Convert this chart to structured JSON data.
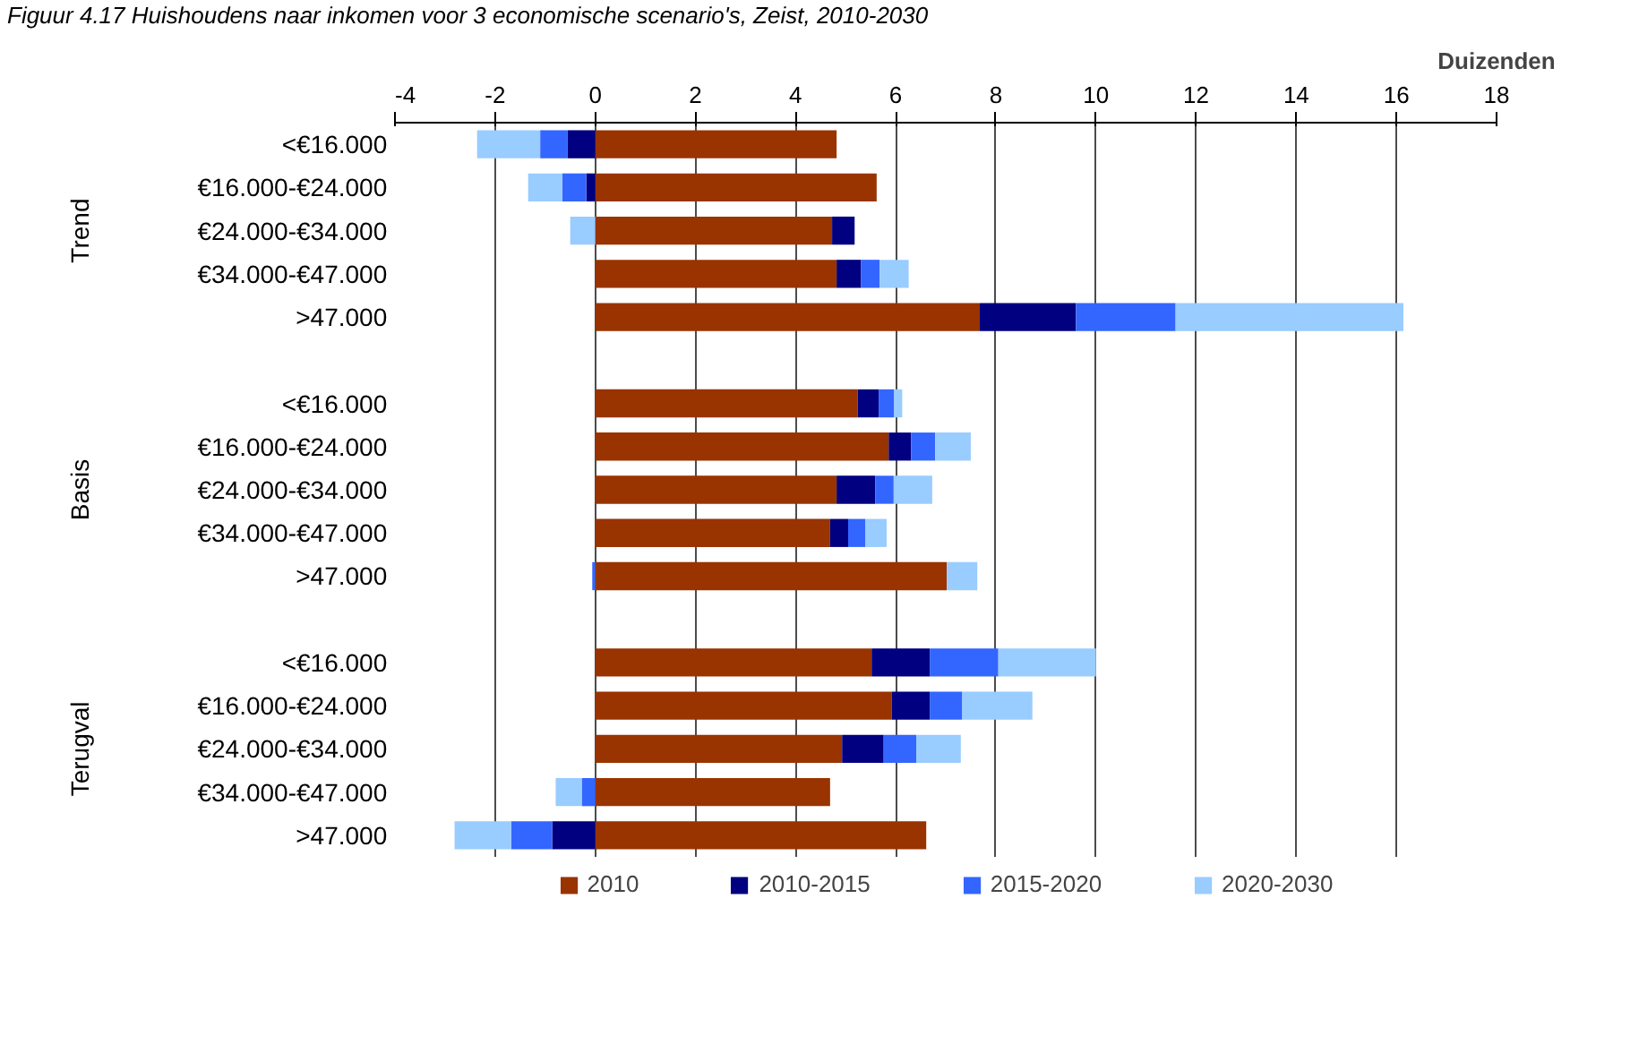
{
  "chart_data": {
    "type": "bar",
    "orientation": "horizontal",
    "stacked": true,
    "title": "Figuur 4.17 Huishoudens naar inkomen voor 3 economische scenario's, Zeist, 2010-2030",
    "xlabel": "Duizenden",
    "annotations": [
      "Trend",
      "Basis",
      "Terugval"
    ],
    "categories": [
      "<€16.000",
      "€16.000-€24.000",
      "€24.000-€34.000",
      "€34.000-€47.000",
      ">47.000",
      null,
      "<€16.000",
      "€16.000-€24.000",
      "€24.000-€34.000",
      "€34.000-€47.000",
      ">47.000",
      null,
      "<€16.000",
      "€16.000-€24.000",
      "€24.000-€34.000",
      "€34.000-€47.000",
      ">47.000"
    ],
    "series": [
      {
        "name": "2010",
        "color": "#993300",
        "values": [
          4.82,
          5.62,
          4.73,
          4.82,
          7.68,
          null,
          5.24,
          5.86,
          4.82,
          4.69,
          7.02,
          null,
          5.52,
          5.92,
          4.93,
          4.69,
          6.61
        ]
      },
      {
        "name": "2010-2015",
        "color": "#000080",
        "values": [
          -0.55,
          -0.18,
          0.45,
          0.49,
          1.92,
          null,
          0.42,
          0.45,
          0.77,
          0.36,
          0,
          null,
          1.16,
          0.76,
          0.83,
          0,
          -0.86
        ]
      },
      {
        "name": "2015-2020",
        "color": "#3366ff",
        "values": [
          -0.55,
          -0.48,
          0,
          0.37,
          1.99,
          null,
          0.31,
          0.48,
          0.37,
          0.34,
          -0.06,
          null,
          1.37,
          0.65,
          0.65,
          -0.27,
          -0.82
        ]
      },
      {
        "name": "2020-2030",
        "color": "#99ccff",
        "values": [
          -1.26,
          -0.68,
          -0.5,
          0.58,
          4.55,
          null,
          0.16,
          0.71,
          0.77,
          0.43,
          0.61,
          null,
          1.95,
          1.4,
          0.89,
          -0.52,
          -1.13
        ]
      }
    ],
    "xlim": [
      -4,
      18
    ],
    "xticks": [
      -4,
      -2,
      0,
      2,
      4,
      6,
      8,
      10,
      12,
      14,
      16,
      18
    ],
    "grid": "x",
    "legend": "bottom"
  }
}
